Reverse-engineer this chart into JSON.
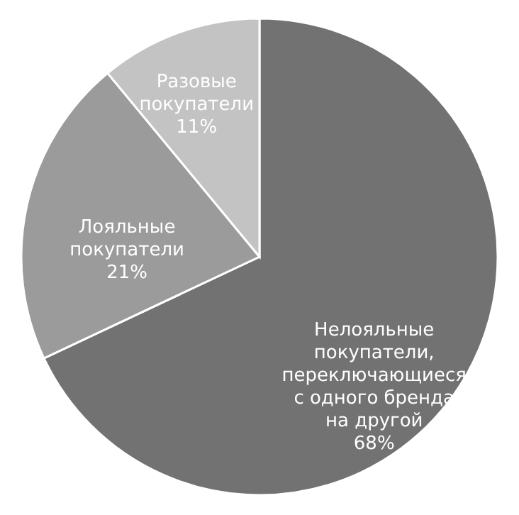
{
  "chart_data": {
    "type": "pie",
    "categories": [
      "Нелояльные покупатели, переключающиеся с одного бренда на другой",
      "Лояльные покупатели",
      "Разовые покупатели"
    ],
    "values": [
      68,
      21,
      11
    ],
    "value_labels": [
      "68%",
      "21%",
      "11%"
    ],
    "colors": [
      "#727272",
      "#9b9b9b",
      "#c3c3c3"
    ],
    "legend": false
  }
}
